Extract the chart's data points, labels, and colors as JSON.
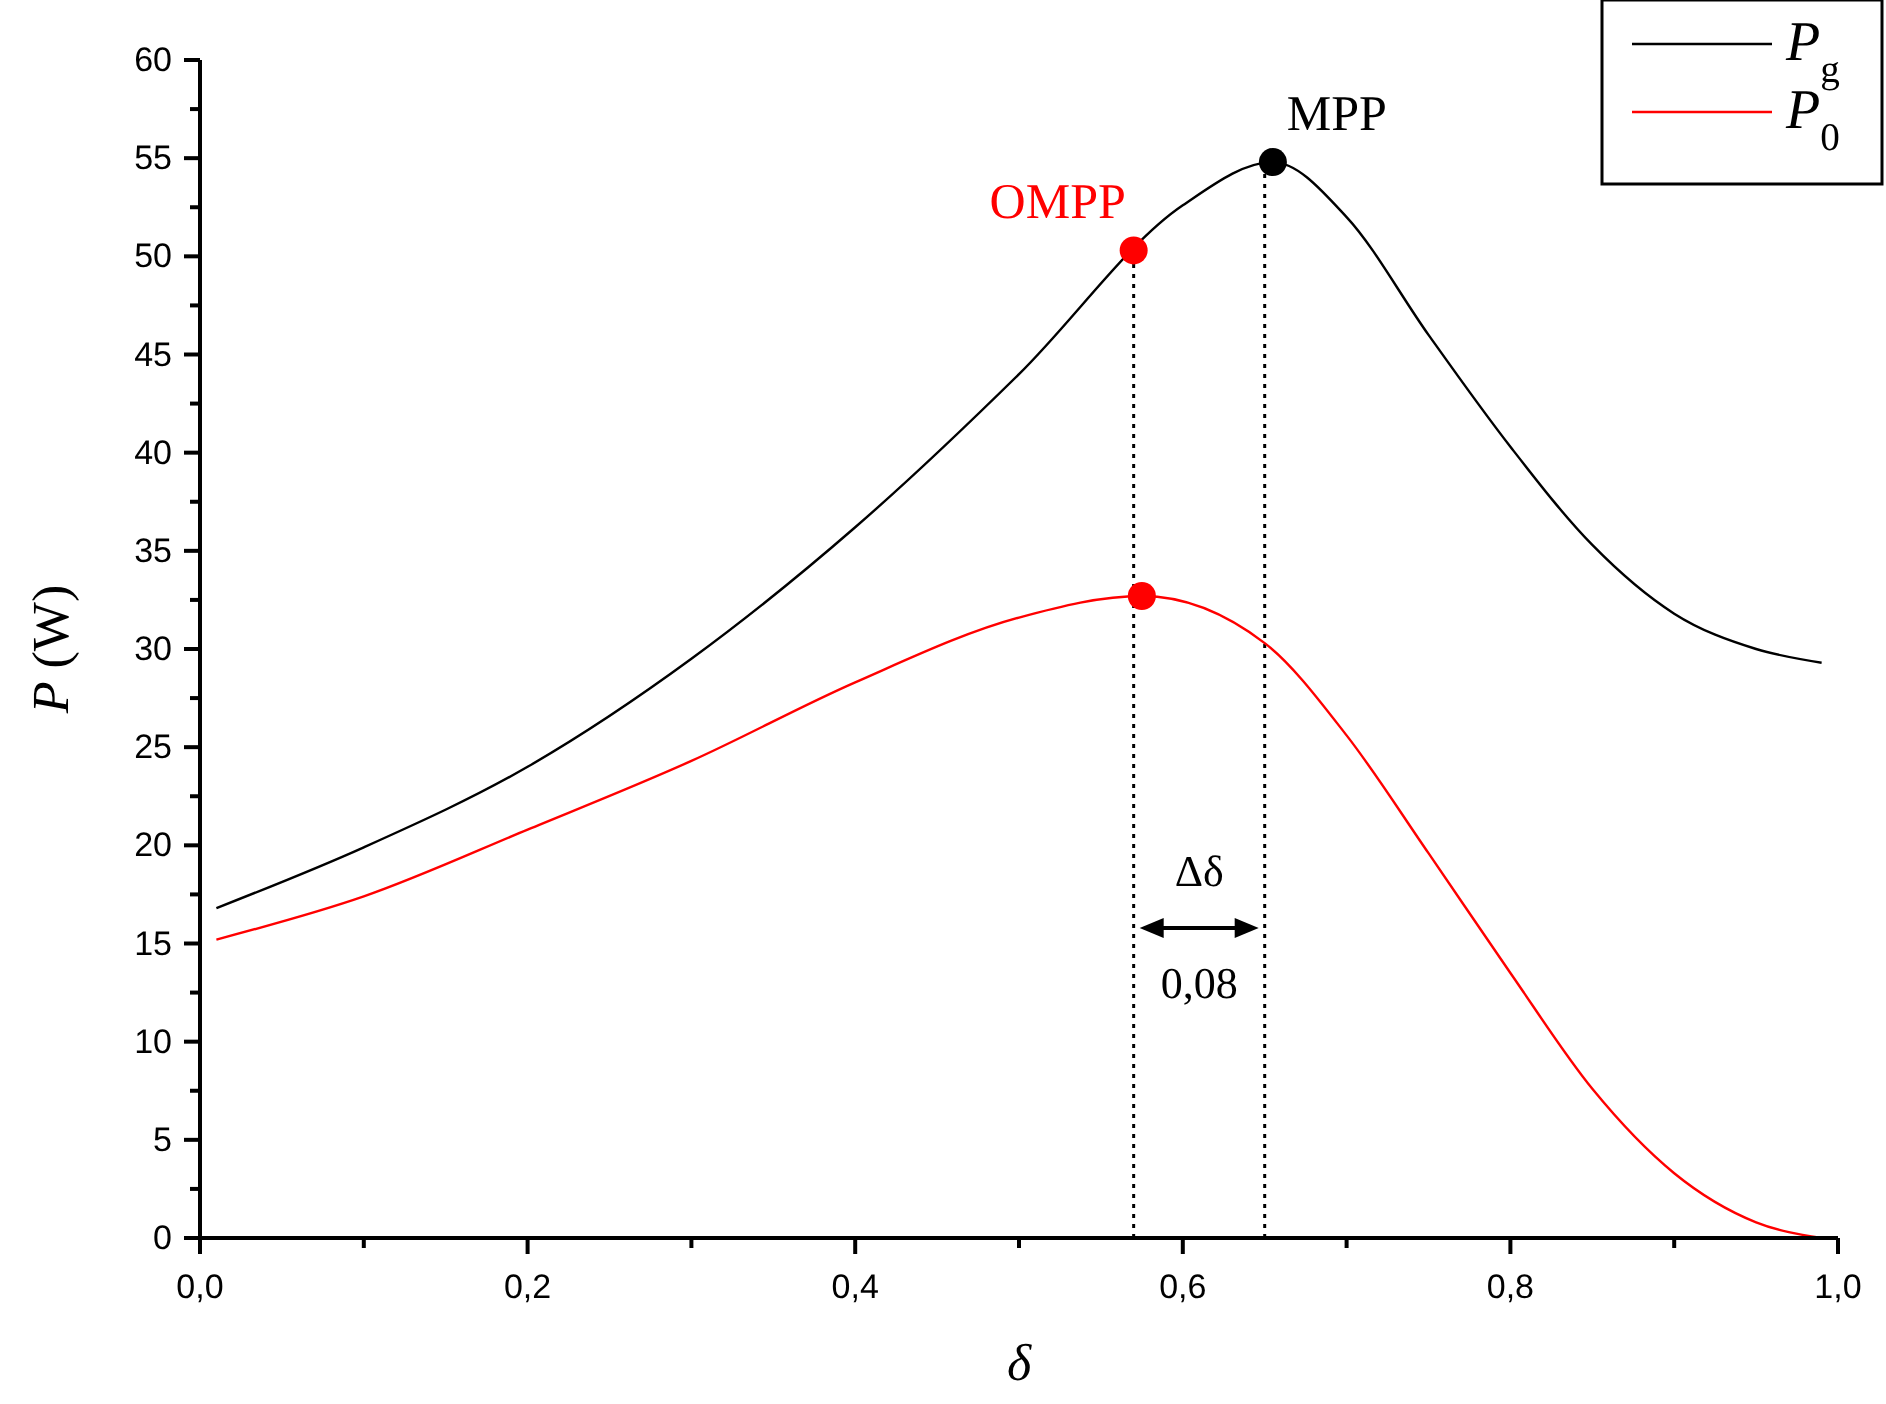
{
  "chart_data": {
    "type": "line",
    "xlabel": "δ",
    "ylabel": "P (W)",
    "xlim": [
      0,
      1
    ],
    "ylim": [
      0,
      60
    ],
    "xticks": [
      {
        "value": 0,
        "label": "0,0"
      },
      {
        "value": 0.2,
        "label": "0,2"
      },
      {
        "value": 0.4,
        "label": "0,4"
      },
      {
        "value": 0.6,
        "label": "0,6"
      },
      {
        "value": 0.8,
        "label": "0,8"
      },
      {
        "value": 1,
        "label": "1,0"
      }
    ],
    "yticks": [
      0,
      5,
      10,
      15,
      20,
      25,
      30,
      35,
      40,
      45,
      50,
      55,
      60
    ],
    "grid": false,
    "legend": "top right",
    "marker": "none",
    "line_style": "solid",
    "series": [
      {
        "name": "P$_{g}$",
        "color": "#000000",
        "x": [
          0.01,
          0.1,
          0.2,
          0.3,
          0.4,
          0.5,
          0.6,
          0.655,
          0.7,
          0.75,
          0.8,
          0.85,
          0.9,
          0.95,
          0.99
        ],
        "values": [
          16.8,
          19.9,
          24.0,
          29.5,
          36.2,
          44.0,
          52.6,
          54.8,
          52.0,
          46.0,
          40.3,
          35.3,
          31.8,
          30.0,
          29.3
        ]
      },
      {
        "name": "P$_{0}$",
        "color": "#ff0000",
        "x": [
          0.01,
          0.1,
          0.2,
          0.3,
          0.4,
          0.5,
          0.575,
          0.65,
          0.7,
          0.75,
          0.8,
          0.85,
          0.9,
          0.95,
          0.99
        ],
        "values": [
          15.2,
          17.4,
          20.8,
          24.3,
          28.3,
          31.6,
          32.7,
          30.3,
          25.6,
          19.6,
          13.5,
          7.6,
          3.3,
          0.8,
          0
        ]
      },
      {
        "name": "OMPP",
        "type": "scatter",
        "marker": "circle",
        "color": "#ff0000",
        "x": [
          0.57,
          0.575
        ],
        "values": [
          50.3,
          32.7
        ]
      },
      {
        "name": "MPP",
        "type": "scatter",
        "marker": "circle",
        "color": "#000000",
        "x": [
          0.655
        ],
        "values": [
          54.8
        ]
      }
    ],
    "ref_lines": [
      {
        "axis": "x",
        "value": 0.57,
        "line_style": "dotted",
        "color": "#000000"
      },
      {
        "axis": "x",
        "value": 0.65,
        "line_style": "dotted",
        "color": "#000000"
      }
    ],
    "annotations": [
      "Δδ",
      "0,08"
    ]
  }
}
